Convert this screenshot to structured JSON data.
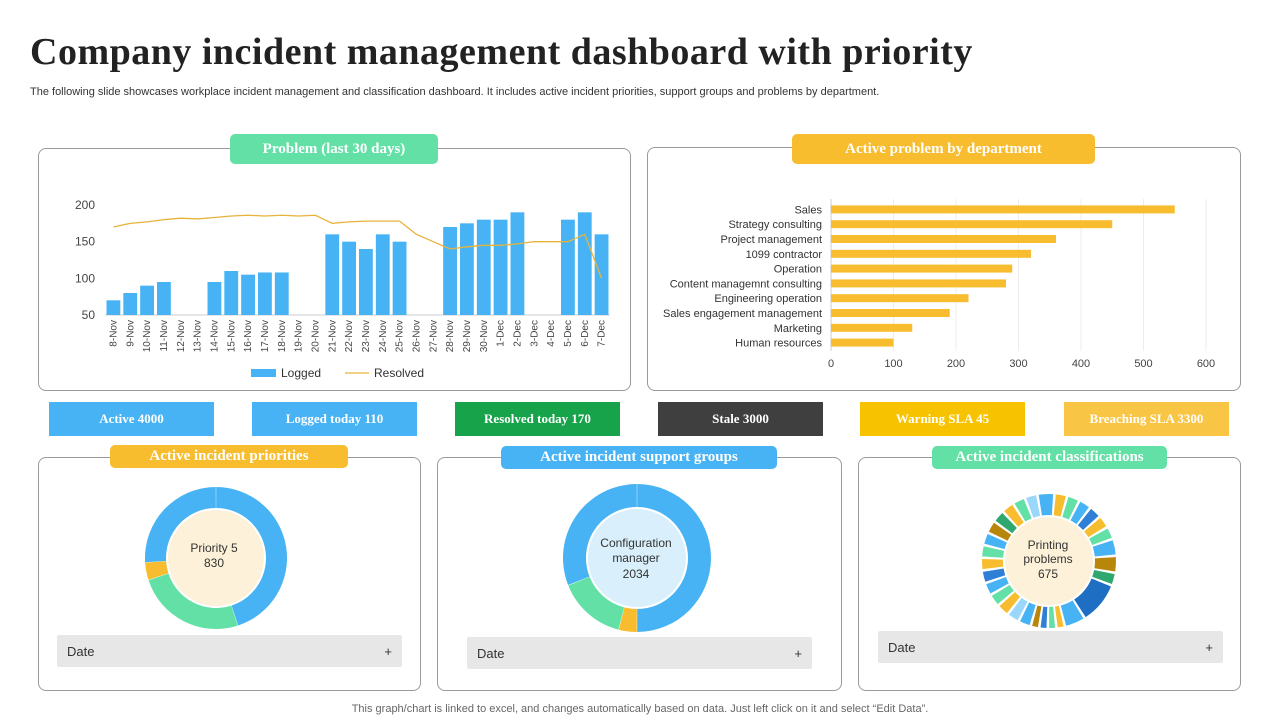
{
  "header": {
    "title": "Company incident management dashboard with priority",
    "subtitle": "The following slide showcases workplace incident management and classification dashboard. It includes active incident priorities, support groups and problems by department."
  },
  "problem_panel": {
    "title": "Problem (last 30 days)",
    "legend_logged": "Logged",
    "legend_resolved": "Resolved"
  },
  "department_panel": {
    "title": "Active problem by department"
  },
  "stats": {
    "active": "Active 4000",
    "logged_today": "Logged today 110",
    "resolved_today": "Resolved today 170",
    "stale": "Stale 3000",
    "warning_sla": "Warning SLA 45",
    "breaching_sla": "Breaching SLA 3300"
  },
  "priorities_panel": {
    "title": "Active incident priorities",
    "center_line1": "Priority 5",
    "center_line2": "830",
    "date_label": "Date",
    "plus": "+"
  },
  "support_panel": {
    "title": "Active incident support groups",
    "center_line1": "Configuration",
    "center_line2": "manager",
    "center_line3": "2034",
    "date_label": "Date",
    "plus": "+"
  },
  "classifications_panel": {
    "title": "Active incident classifications",
    "center_line1": "Printing",
    "center_line2": "problems",
    "center_line3": "675",
    "date_label": "Date",
    "plus": "+"
  },
  "footer": "This graph/chart is linked to excel,  and changes automatically based on data. Just left click on it and select “Edit Data”.",
  "colors": {
    "blue": "#47b3f4",
    "orange": "#f8bd2f",
    "green": "#62e0a6",
    "dark_green": "#16a34a",
    "dark": "#3f3f3f",
    "yellow": "#f7c300",
    "light_orange": "#f9c545"
  },
  "chart_data": [
    {
      "type": "bar",
      "categories": [
        "8-Nov",
        "9-Nov",
        "10-Nov",
        "11-Nov",
        "12-Nov",
        "13-Nov",
        "14-Nov",
        "15-Nov",
        "16-Nov",
        "17-Nov",
        "18-Nov",
        "19-Nov",
        "20-Nov",
        "21-Nov",
        "22-Nov",
        "23-Nov",
        "24-Nov",
        "25-Nov",
        "26-Nov",
        "27-Nov",
        "28-Nov",
        "29-Nov",
        "30-Nov",
        "1-Dec",
        "2-Dec",
        "3-Dec",
        "4-Dec",
        "5-Dec",
        "6-Dec",
        "7-Dec"
      ],
      "series": [
        {
          "name": "Logged",
          "values": [
            70,
            80,
            90,
            95,
            null,
            null,
            95,
            110,
            105,
            108,
            108,
            null,
            null,
            160,
            150,
            140,
            160,
            150,
            null,
            null,
            170,
            175,
            180,
            180,
            190,
            null,
            null,
            180,
            190,
            160
          ]
        },
        {
          "name": "Resolved",
          "values": [
            170,
            175,
            177,
            180,
            182,
            181,
            183,
            185,
            186,
            185,
            186,
            185,
            186,
            175,
            177,
            178,
            178,
            178,
            160,
            150,
            140,
            143,
            145,
            145,
            147,
            150,
            150,
            150,
            160,
            100
          ]
        }
      ],
      "ylim": [
        50,
        200
      ],
      "yticks": [
        50,
        100,
        150,
        200
      ],
      "legend": "bottom"
    },
    {
      "type": "bar",
      "orientation": "horizontal",
      "categories": [
        "Sales",
        "Strategy consulting",
        "Project management",
        "1099 contractor",
        "Operation",
        "Content managemnt consulting",
        "Engineering operation",
        "Sales engagement management",
        "Marketing",
        "Human resources"
      ],
      "values": [
        550,
        450,
        360,
        320,
        290,
        280,
        220,
        190,
        130,
        100
      ],
      "xlim": [
        0,
        600
      ],
      "xticks": [
        0,
        100,
        200,
        300,
        400,
        500,
        600
      ]
    },
    {
      "type": "pie",
      "name": "Active incident priorities",
      "values": [
        45,
        25,
        4,
        26
      ],
      "colors": [
        "#47b3f4",
        "#62e0a6",
        "#f8bd2f",
        "#47b3f4"
      ]
    },
    {
      "type": "pie",
      "name": "Active incident support groups",
      "values": [
        50,
        4,
        15,
        31
      ],
      "colors": [
        "#47b3f4",
        "#f8bd2f",
        "#62e0a6",
        "#47b3f4"
      ]
    },
    {
      "type": "pie",
      "name": "Active incident classifications",
      "values": [
        4,
        3,
        3,
        3,
        3,
        3,
        3,
        4,
        4,
        3,
        10,
        5,
        2,
        2,
        2,
        2,
        3,
        3,
        3,
        3,
        3,
        3,
        3,
        3,
        3,
        3,
        3,
        3,
        3,
        3
      ],
      "colors": [
        "#47b3f4",
        "#f8bd2f",
        "#62e0a6",
        "#47b3f4",
        "#2f7fd6",
        "#f8bd2f",
        "#62e0a6",
        "#47b3f4",
        "#b8860b",
        "#2ea86f",
        "#1e6fc4",
        "#47b3f4",
        "#f8bd2f",
        "#62e0a6",
        "#2f7fd6",
        "#b8860b",
        "#47b3f4",
        "#9ad7fb",
        "#f8bd2f",
        "#62e0a6",
        "#47b3f4",
        "#2f7fd6",
        "#f8bd2f",
        "#62e0a6",
        "#47b3f4",
        "#b8860b",
        "#2ea86f",
        "#f8bd2f",
        "#62e0a6",
        "#9ad7fb"
      ]
    }
  ]
}
